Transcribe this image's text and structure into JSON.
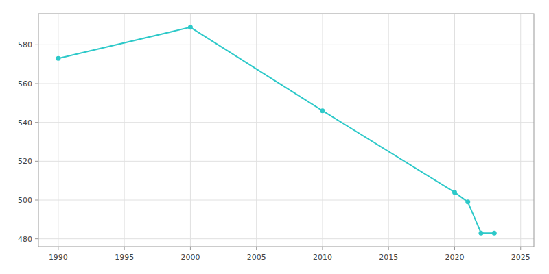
{
  "chart_data": {
    "type": "line",
    "x": [
      1990,
      2000,
      2010,
      2020,
      2021,
      2022,
      2023
    ],
    "values": [
      573,
      589,
      546,
      504,
      499,
      483,
      483
    ],
    "color": "#2dc9c9",
    "marker": "circle",
    "xlim": [
      1988.5,
      2026
    ],
    "ylim": [
      476,
      596
    ],
    "xticks": [
      1990,
      1995,
      2000,
      2005,
      2010,
      2015,
      2020,
      2025
    ],
    "yticks": [
      480,
      500,
      520,
      540,
      560,
      580
    ],
    "grid": true
  }
}
